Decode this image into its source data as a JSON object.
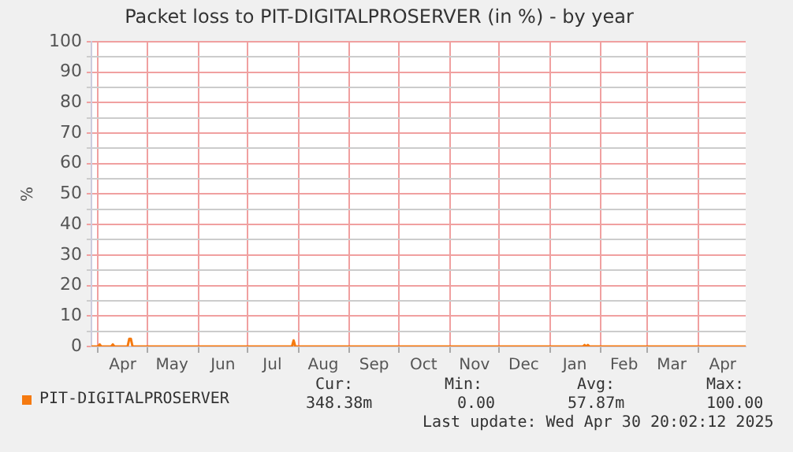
{
  "chart_data": {
    "type": "line",
    "title": "Packet loss to PIT-DIGITALPROSERVER (in %) - by year",
    "ylabel": "%",
    "x": [
      "2024-03-28",
      "2024-04-01",
      "2024-04-02",
      "2024-04-03",
      "2024-04-09",
      "2024-04-10",
      "2024-04-11",
      "2024-04-19",
      "2024-04-20",
      "2024-04-21",
      "2024-04-22",
      "2024-07-28",
      "2024-07-29",
      "2024-07-30",
      "2025-01-21",
      "2025-01-22",
      "2025-01-23",
      "2025-01-24",
      "2025-01-25",
      "2025-04-30"
    ],
    "series": [
      {
        "name": "PIT-DIGITALPROSERVER",
        "color": "#f57a10",
        "values": [
          0,
          0,
          0.7,
          0,
          0,
          0.7,
          0,
          0,
          2.5,
          2.5,
          0,
          0,
          2,
          0,
          0,
          0.5,
          0,
          0.5,
          0,
          0
        ]
      }
    ],
    "xlim": [
      "2024-03-28",
      "2025-04-30"
    ],
    "xticks": [
      {
        "value": "2024-04-01",
        "label": null
      },
      {
        "value": "2024-04-16",
        "label": "Apr"
      },
      {
        "value": "2024-05-01",
        "label": null
      },
      {
        "value": "2024-05-16",
        "label": "May"
      },
      {
        "value": "2024-06-01",
        "label": null
      },
      {
        "value": "2024-06-16",
        "label": "Jun"
      },
      {
        "value": "2024-07-01",
        "label": null
      },
      {
        "value": "2024-07-16",
        "label": "Jul"
      },
      {
        "value": "2024-08-01",
        "label": null
      },
      {
        "value": "2024-08-16",
        "label": "Aug"
      },
      {
        "value": "2024-09-01",
        "label": null
      },
      {
        "value": "2024-09-16",
        "label": "Sep"
      },
      {
        "value": "2024-10-01",
        "label": null
      },
      {
        "value": "2024-10-16",
        "label": "Oct"
      },
      {
        "value": "2024-11-01",
        "label": null
      },
      {
        "value": "2024-11-16",
        "label": "Nov"
      },
      {
        "value": "2024-12-01",
        "label": null
      },
      {
        "value": "2024-12-16",
        "label": "Dec"
      },
      {
        "value": "2025-01-01",
        "label": null
      },
      {
        "value": "2025-01-16",
        "label": "Jan"
      },
      {
        "value": "2025-02-01",
        "label": null
      },
      {
        "value": "2025-02-15",
        "label": "Feb"
      },
      {
        "value": "2025-03-01",
        "label": null
      },
      {
        "value": "2025-03-16",
        "label": "Mar"
      },
      {
        "value": "2025-04-01",
        "label": null
      },
      {
        "value": "2025-04-16",
        "label": "Apr"
      }
    ],
    "ylim": [
      0,
      100
    ],
    "yticks": [
      0,
      {
        "value": 5,
        "label": null
      },
      10,
      {
        "value": 15,
        "label": null
      },
      20,
      {
        "value": 25,
        "label": null
      },
      30,
      {
        "value": 35,
        "label": null
      },
      40,
      {
        "value": 45,
        "label": null
      },
      50,
      {
        "value": 55,
        "label": null
      },
      60,
      {
        "value": 65,
        "label": null
      },
      70,
      {
        "value": 75,
        "label": null
      },
      80,
      {
        "value": 85,
        "label": null
      },
      90,
      {
        "value": 95,
        "label": null
      },
      100
    ],
    "grid": true,
    "legend": "bottom left",
    "marker": "none",
    "line_style": "solid",
    "annotations": [
      "Cur:",
      "Min:",
      "Avg:",
      "Max:",
      "348.38m",
      "0.00",
      "57.87m",
      "100.00",
      "Last update: Wed Apr 30 20:02:12 2025"
    ]
  }
}
